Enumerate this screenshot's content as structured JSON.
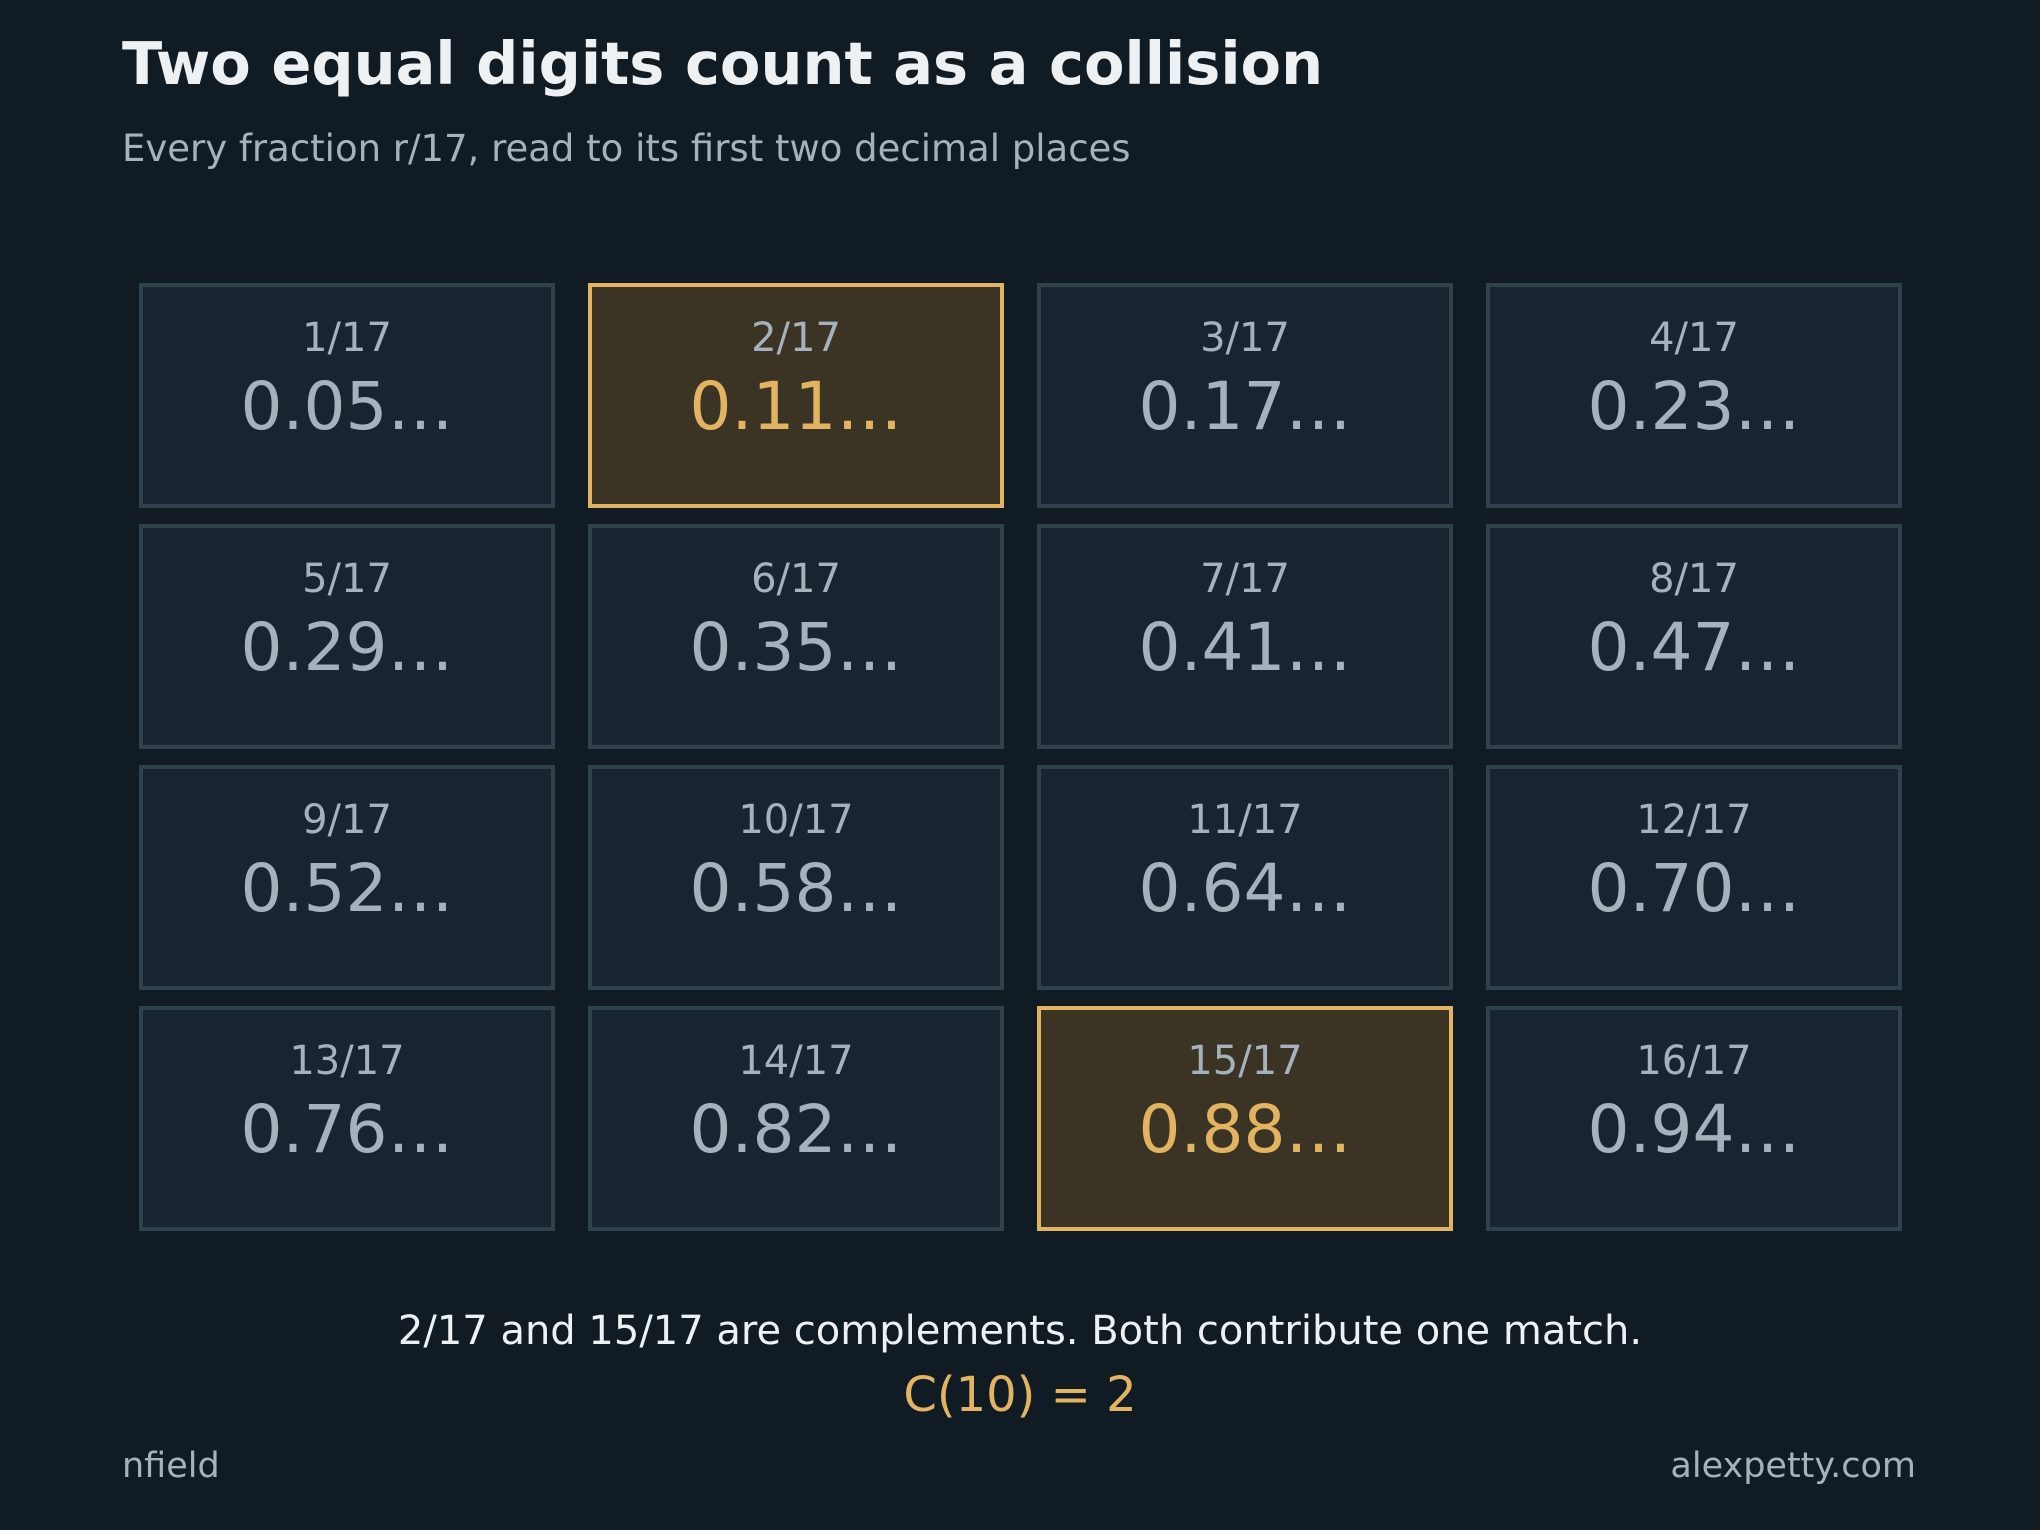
{
  "title": "Two equal digits count as a collision",
  "subtitle": "Every fraction r/17, read to its first two decimal places",
  "colors": {
    "background": "#111b23",
    "cell_background": "#182530",
    "cell_border": "#2f414d",
    "highlight_background": "#3b3425",
    "highlight_accent": "#e2b462",
    "muted_text": "#a5b2bc",
    "bright_text": "#eef1f3"
  },
  "cells": [
    {
      "fraction": "1/17",
      "value": "0.05…",
      "highlighted": false
    },
    {
      "fraction": "2/17",
      "value": "0.11…",
      "highlighted": true
    },
    {
      "fraction": "3/17",
      "value": "0.17…",
      "highlighted": false
    },
    {
      "fraction": "4/17",
      "value": "0.23…",
      "highlighted": false
    },
    {
      "fraction": "5/17",
      "value": "0.29…",
      "highlighted": false
    },
    {
      "fraction": "6/17",
      "value": "0.35…",
      "highlighted": false
    },
    {
      "fraction": "7/17",
      "value": "0.41…",
      "highlighted": false
    },
    {
      "fraction": "8/17",
      "value": "0.47…",
      "highlighted": false
    },
    {
      "fraction": "9/17",
      "value": "0.52…",
      "highlighted": false
    },
    {
      "fraction": "10/17",
      "value": "0.58…",
      "highlighted": false
    },
    {
      "fraction": "11/17",
      "value": "0.64…",
      "highlighted": false
    },
    {
      "fraction": "12/17",
      "value": "0.70…",
      "highlighted": false
    },
    {
      "fraction": "13/17",
      "value": "0.76…",
      "highlighted": false
    },
    {
      "fraction": "14/17",
      "value": "0.82…",
      "highlighted": false
    },
    {
      "fraction": "15/17",
      "value": "0.88…",
      "highlighted": true
    },
    {
      "fraction": "16/17",
      "value": "0.94…",
      "highlighted": false
    }
  ],
  "note": "2/17 and 15/17 are complements. Both contribute one match.",
  "result": "C(10) = 2",
  "footer": {
    "left": "nfield",
    "right": "alexpetty.com"
  }
}
